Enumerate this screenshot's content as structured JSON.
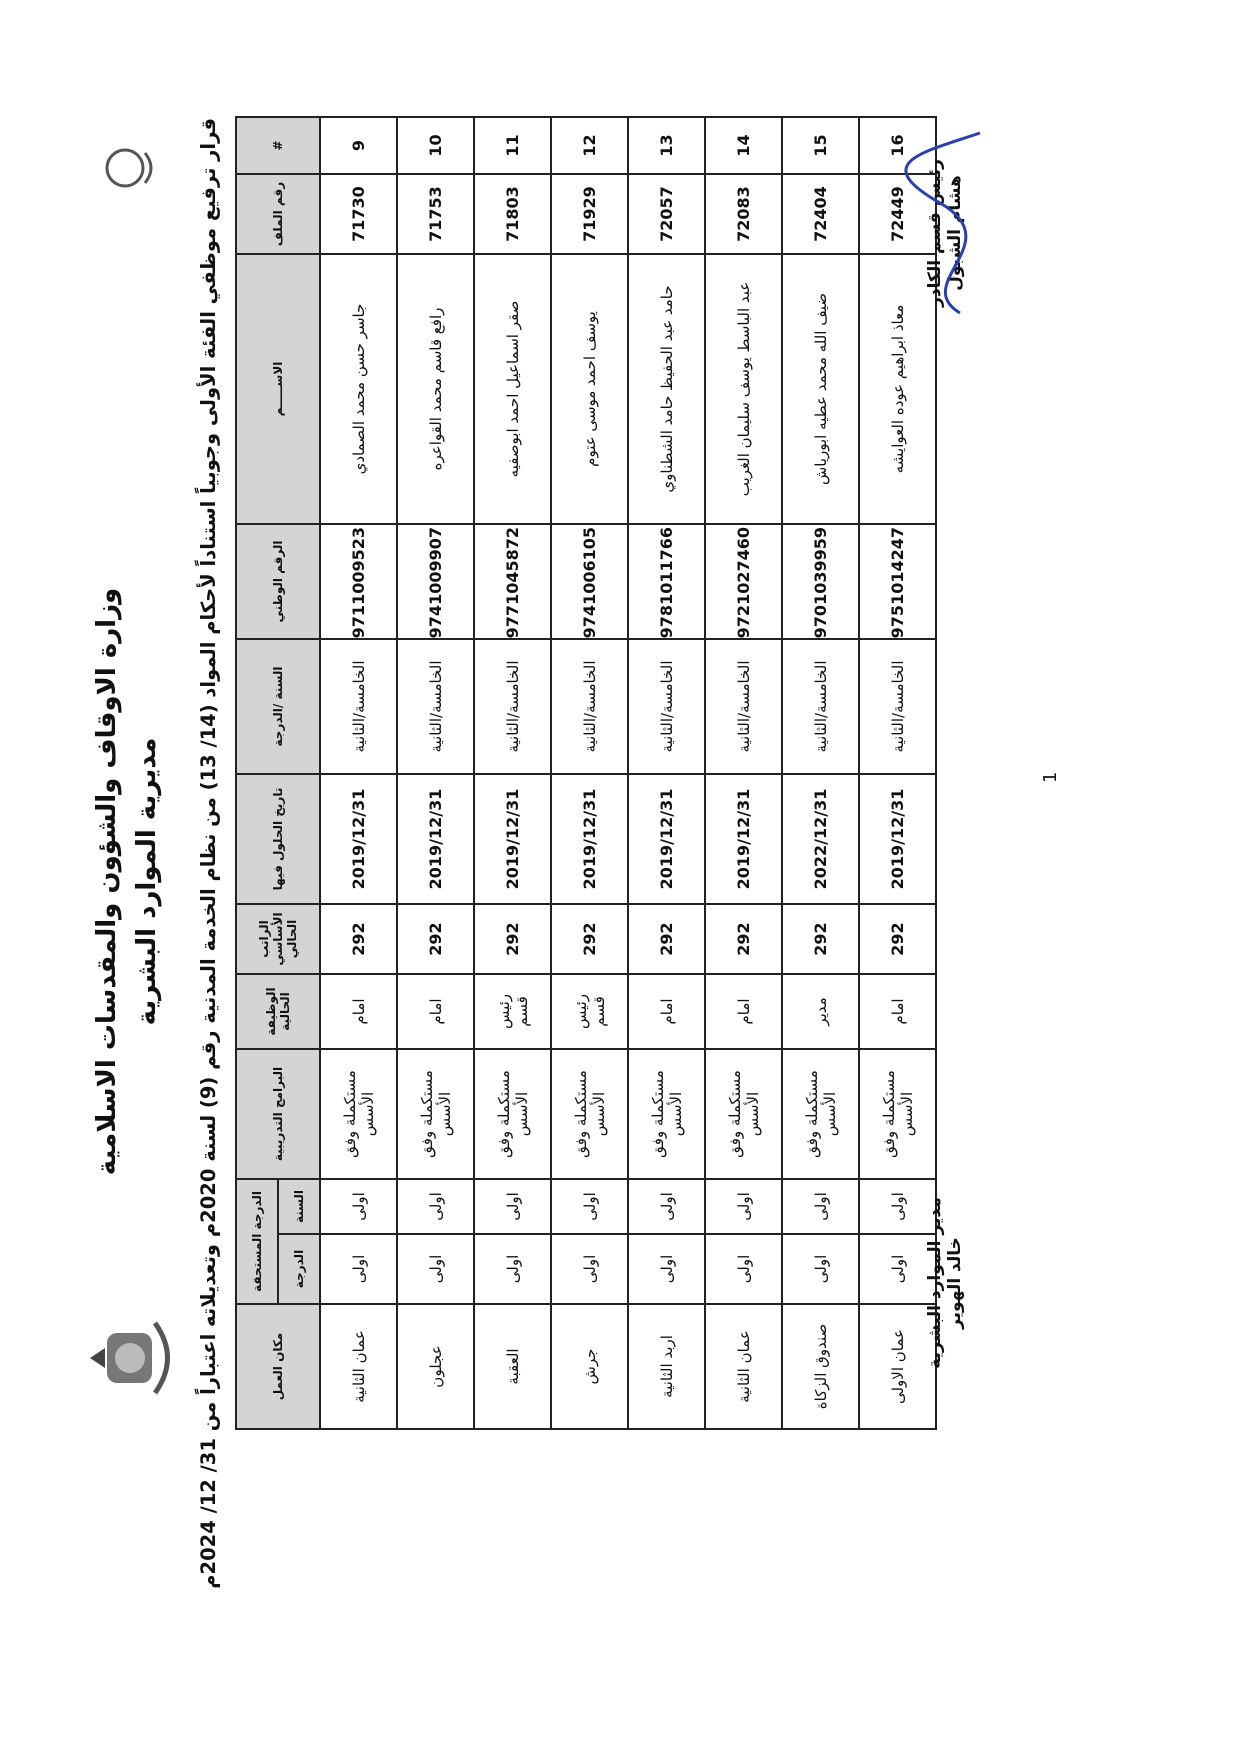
{
  "header": {
    "ministry": "وزارة الاوقاف والشؤون والمقدسات الاسلامية",
    "directorate": "مديرية الموارد البشرية",
    "title": "قرار ترفيع موظفي الفئة الأولى وجوبياً استناداً لأحكام المواد (14/ 13) من نظام الخدمة المدنية رقم (9) لسنة 2020م وتعديلاته اعتباراً من 31/ 12/ 2024م"
  },
  "table": {
    "columns": [
      "#",
      "رقم الملف",
      "الاســـــم",
      "الرقم الوطني",
      "السنة /الدرجة",
      "تاريخ الحلول فيها",
      "الراتب الأساسي الحالي",
      "الوظيفة الحالية",
      "البرامج التدريبية",
      "السنة",
      "الدرجة",
      "مكان العمل"
    ],
    "group_header": "الدرجة المستحقة",
    "rows": [
      [
        "9",
        "71730",
        "جاسر حسن محمد الصمادي",
        "9711009523",
        "الخامسة/الثانية",
        "2019/12/31",
        "292",
        "امام",
        "مستكملة وفق الأسس",
        "اولى",
        "اولى",
        "عمان الثانية"
      ],
      [
        "10",
        "71753",
        "رافع قاسم محمد القواعره",
        "9741009907",
        "الخامسة/الثانية",
        "2019/12/31",
        "292",
        "امام",
        "مستكملة وفق الأسس",
        "اولى",
        "اولى",
        "عجلون"
      ],
      [
        "11",
        "71803",
        "صقر اسماعيل احمد ابوصفيه",
        "9771045872",
        "الخامسة/الثانية",
        "2019/12/31",
        "292",
        "رئيس قسم",
        "مستكملة وفق الأسس",
        "اولى",
        "اولى",
        "العقبة"
      ],
      [
        "12",
        "71929",
        "يوسف احمد موسى عتوم",
        "9741006105",
        "الخامسة/الثانية",
        "2019/12/31",
        "292",
        "رئيس قسم",
        "مستكملة وفق الأسس",
        "اولى",
        "اولى",
        "جرش"
      ],
      [
        "13",
        "72057",
        "حامد عبد الحفيظ حامد الشطناوي",
        "9781011766",
        "الخامسة/الثانية",
        "2019/12/31",
        "292",
        "امام",
        "مستكملة وفق الأسس",
        "اولى",
        "اولى",
        "اربد الثانية"
      ],
      [
        "14",
        "72083",
        "عبد الباسط يوسف سليمان الغريب",
        "9721027460",
        "الخامسة/الثانية",
        "2019/12/31",
        "292",
        "امام",
        "مستكملة وفق الأسس",
        "اولى",
        "اولى",
        "عمان الثانية"
      ],
      [
        "15",
        "72404",
        "ضيف الله محمد عطيه ابورياش",
        "9701039959",
        "الخامسة/الثانية",
        "2022/12/31",
        "292",
        "مدير",
        "مستكملة وفق الأسس",
        "اولى",
        "اولى",
        "صندوق الزكاة"
      ],
      [
        "16",
        "72449",
        "معاذ ابراهيم عوده العوايشه",
        "9751014247",
        "الخامسة/الثانية",
        "2019/12/31",
        "292",
        "امام",
        "مستكملة وفق الأسس",
        "اولى",
        "اولى",
        "عمان الاولى"
      ]
    ]
  },
  "signatures": [
    {
      "role": "رئيس قسم الكادر",
      "name": "هشام الشبول"
    },
    {
      "role": "مدير الموارد البشرية",
      "name": "خالد الهوير"
    }
  ],
  "page_number": "1"
}
